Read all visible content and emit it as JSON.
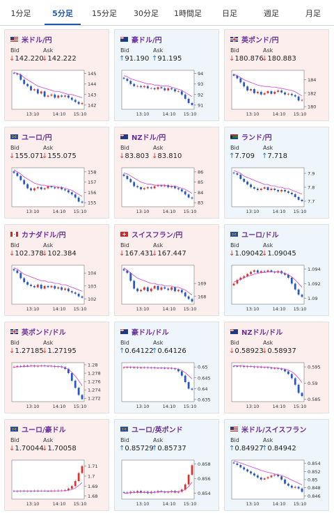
{
  "tabs": [
    {
      "label": "1分足",
      "active": false
    },
    {
      "label": "5分足",
      "active": true
    },
    {
      "label": "15分足",
      "active": false
    },
    {
      "label": "30分足",
      "active": false
    },
    {
      "label": "1時間足",
      "active": false
    },
    {
      "label": "日足",
      "active": false
    },
    {
      "label": "週足",
      "active": false
    },
    {
      "label": "月足",
      "active": false
    }
  ],
  "labels": {
    "bid": "Bid",
    "ask": "Ask"
  },
  "colors": {
    "down": "#d8342b",
    "up": "#1f6fbf",
    "name": "#6a2f99",
    "ma": "#d23fd0",
    "candle_up": "#d8342b",
    "candle_down": "#2457c5"
  },
  "cards": [
    {
      "name": "米ドル/円",
      "flag": "us-flag-icon",
      "bg": "red",
      "bid": "142.220",
      "ask": "142.222",
      "bid_dir": "down",
      "ask_dir": "down",
      "chart_data": {
        "type": "line",
        "x_labels": [
          "13:10",
          "14:10",
          "15:10"
        ],
        "y_ticks": [
          142,
          143,
          144,
          145
        ],
        "ylim": [
          141.6,
          145.3
        ],
        "price": [
          145.0,
          144.9,
          144.4,
          144.0,
          143.8,
          143.4,
          143.5,
          143.1,
          143.3,
          142.8,
          142.9,
          143.0,
          142.7,
          142.9,
          142.8,
          142.9,
          142.7,
          142.5,
          142.3,
          142.1,
          142.2
        ],
        "ma": [
          145.1,
          145.0,
          144.9,
          144.6,
          144.4,
          144.2,
          144.0,
          143.8,
          143.7,
          143.6,
          143.5,
          143.4,
          143.3,
          143.3,
          143.2,
          143.1,
          143.0,
          143.0,
          142.9,
          142.8,
          142.7
        ]
      }
    },
    {
      "name": "豪ドル/円",
      "flag": "au-flag-icon",
      "bg": "blue",
      "bid": "91.190",
      "ask": "91.195",
      "bid_dir": "up",
      "ask_dir": "up",
      "chart_data": {
        "type": "line",
        "x_labels": [
          "13:10",
          "14:10",
          "15:10"
        ],
        "y_ticks": [
          91,
          92,
          93,
          94
        ],
        "ylim": [
          90.6,
          94.3
        ],
        "price": [
          93.5,
          93.3,
          93.0,
          92.8,
          92.8,
          92.7,
          92.8,
          92.6,
          92.6,
          92.5,
          92.7,
          92.6,
          92.4,
          92.6,
          92.5,
          92.3,
          92.3,
          92.0,
          91.6,
          91.2,
          91.0
        ],
        "ma": [
          93.8,
          93.7,
          93.5,
          93.4,
          93.3,
          93.2,
          93.1,
          93.0,
          93.0,
          92.9,
          92.9,
          92.8,
          92.8,
          92.8,
          92.7,
          92.6,
          92.5,
          92.4,
          92.2,
          92.0,
          91.8
        ]
      }
    },
    {
      "name": "英ポンド/円",
      "flag": "uk-flag-icon",
      "bg": "red",
      "bid": "180.876",
      "ask": "180.883",
      "bid_dir": "down",
      "ask_dir": "down",
      "chart_data": {
        "type": "line",
        "x_labels": [
          "13:10",
          "14:10",
          "15:10"
        ],
        "y_ticks": [
          180,
          182,
          184
        ],
        "ylim": [
          179.6,
          185.4
        ],
        "price": [
          184.6,
          184.2,
          183.6,
          183.0,
          182.4,
          182.6,
          182.0,
          182.2,
          181.8,
          182.0,
          182.3,
          181.9,
          182.2,
          182.4,
          182.1,
          181.8,
          181.9,
          181.7,
          181.5,
          180.9,
          181.0
        ],
        "ma": [
          184.8,
          184.6,
          184.3,
          184.0,
          183.8,
          183.6,
          183.4,
          183.2,
          183.1,
          183.0,
          183.0,
          182.9,
          182.9,
          182.8,
          182.7,
          182.6,
          182.5,
          182.4,
          182.2,
          181.9,
          181.6
        ]
      }
    },
    {
      "name": "ユーロ/円",
      "flag": "eu-flag-icon",
      "bg": "red",
      "bid": "155.071",
      "ask": "155.075",
      "bid_dir": "down",
      "ask_dir": "down",
      "chart_data": {
        "type": "line",
        "x_labels": [
          "13:10",
          "14:10",
          "15:10"
        ],
        "y_ticks": [
          155,
          156,
          157,
          158
        ],
        "ylim": [
          154.6,
          158.4
        ],
        "price": [
          157.9,
          157.6,
          157.2,
          156.8,
          156.4,
          156.2,
          156.4,
          156.5,
          156.3,
          156.4,
          156.6,
          156.5,
          156.4,
          156.5,
          156.3,
          156.2,
          156.0,
          155.8,
          155.5,
          155.1,
          155.0
        ],
        "ma": [
          158.2,
          158.0,
          157.8,
          157.5,
          157.3,
          157.1,
          156.9,
          156.8,
          156.7,
          156.7,
          156.6,
          156.6,
          156.6,
          156.5,
          156.5,
          156.4,
          156.3,
          156.2,
          156.0,
          155.8,
          155.6
        ]
      }
    },
    {
      "name": "NZドル/円",
      "flag": "nz-flag-icon",
      "bg": "red",
      "bid": "83.803",
      "ask": "83.810",
      "bid_dir": "down",
      "ask_dir": "down",
      "chart_data": {
        "type": "line",
        "x_labels": [
          "13:10",
          "14:10",
          "15:10"
        ],
        "y_ticks": [
          83,
          84,
          85,
          86
        ],
        "ylim": [
          82.6,
          86.4
        ],
        "price": [
          85.6,
          85.3,
          85.0,
          84.6,
          84.5,
          84.3,
          84.4,
          84.5,
          84.4,
          84.6,
          84.7,
          84.6,
          84.7,
          84.5,
          84.6,
          84.4,
          84.3,
          84.1,
          83.8,
          83.5,
          83.4
        ],
        "ma": [
          85.9,
          85.8,
          85.6,
          85.4,
          85.2,
          85.0,
          84.9,
          84.8,
          84.8,
          84.7,
          84.7,
          84.7,
          84.7,
          84.6,
          84.6,
          84.6,
          84.5,
          84.4,
          84.3,
          84.1,
          83.9
        ]
      }
    },
    {
      "name": "ランド/円",
      "flag": "za-flag-icon",
      "bg": "blue",
      "bid": "7.709",
      "ask": "7.718",
      "bid_dir": "up",
      "ask_dir": "up",
      "chart_data": {
        "type": "line",
        "x_labels": [
          "13:10",
          "14:10",
          "15:10"
        ],
        "y_ticks": [
          7.7,
          7.8,
          7.9
        ],
        "ylim": [
          7.66,
          7.94
        ],
        "price": [
          7.9,
          7.89,
          7.86,
          7.84,
          7.82,
          7.8,
          7.79,
          7.78,
          7.79,
          7.8,
          7.78,
          7.79,
          7.78,
          7.77,
          7.78,
          7.77,
          7.76,
          7.75,
          7.73,
          7.71,
          7.7
        ],
        "ma": [
          7.92,
          7.91,
          7.9,
          7.88,
          7.87,
          7.86,
          7.85,
          7.84,
          7.83,
          7.82,
          7.82,
          7.81,
          7.81,
          7.8,
          7.8,
          7.79,
          7.79,
          7.78,
          7.77,
          7.76,
          7.75
        ]
      }
    },
    {
      "name": "カナダドル/円",
      "flag": "ca-flag-icon",
      "bg": "red",
      "bid": "102.378",
      "ask": "102.384",
      "bid_dir": "down",
      "ask_dir": "down",
      "chart_data": {
        "type": "line",
        "x_labels": [
          "13:10",
          "14:10",
          "15:10"
        ],
        "y_ticks": [
          102,
          103,
          104
        ],
        "ylim": [
          101.6,
          104.6
        ],
        "price": [
          104.2,
          104.0,
          103.6,
          103.3,
          103.1,
          103.0,
          102.9,
          103.1,
          102.8,
          103.0,
          102.9,
          103.0,
          102.8,
          102.9,
          102.7,
          102.8,
          102.6,
          102.5,
          102.4,
          102.2,
          102.1
        ],
        "ma": [
          104.4,
          104.3,
          104.1,
          103.9,
          103.8,
          103.7,
          103.6,
          103.5,
          103.4,
          103.4,
          103.3,
          103.3,
          103.2,
          103.2,
          103.1,
          103.1,
          103.0,
          102.9,
          102.8,
          102.7,
          102.6
        ]
      }
    },
    {
      "name": "スイスフラン/円",
      "flag": "ch-flag-icon",
      "bg": "red",
      "bid": "167.431",
      "ask": "167.447",
      "bid_dir": "down",
      "ask_dir": "down",
      "chart_data": {
        "type": "line",
        "x_labels": [
          "13:10",
          "14:10",
          "15:10"
        ],
        "y_ticks": [
          168,
          169
        ],
        "ylim": [
          167.4,
          170.4
        ],
        "price": [
          170.0,
          169.8,
          169.2,
          168.6,
          168.4,
          168.5,
          168.7,
          168.4,
          168.6,
          168.8,
          168.5,
          168.7,
          168.6,
          168.5,
          168.7,
          168.4,
          168.5,
          168.3,
          168.0,
          167.8,
          167.6
        ],
        "ma": [
          170.2,
          170.0,
          169.8,
          169.6,
          169.4,
          169.3,
          169.2,
          169.1,
          169.0,
          169.0,
          168.9,
          168.9,
          168.8,
          168.8,
          168.8,
          168.7,
          168.7,
          168.6,
          168.5,
          168.3,
          168.1
        ]
      }
    },
    {
      "name": "ユーロ/ドル",
      "flag": "eu-us-flag-icon",
      "bg": "blue",
      "bid": "1.09042",
      "ask": "1.09045",
      "bid_dir": "down",
      "ask_dir": "down",
      "chart_data": {
        "type": "line",
        "x_labels": [
          "13:10",
          "14:10",
          "15:10"
        ],
        "y_ticks": [
          1.09,
          1.092,
          1.094
        ],
        "ylim": [
          1.0892,
          1.0945
        ],
        "price": [
          1.092,
          1.0925,
          1.0928,
          1.093,
          1.0933,
          1.0936,
          1.0938,
          1.0935,
          1.0937,
          1.0936,
          1.0938,
          1.0936,
          1.0935,
          1.0937,
          1.0934,
          1.0932,
          1.0928,
          1.092,
          1.0912,
          1.0905,
          1.0902
        ],
        "ma": [
          1.0922,
          1.0924,
          1.0926,
          1.0928,
          1.093,
          1.0931,
          1.0933,
          1.0934,
          1.0935,
          1.0935,
          1.0936,
          1.0936,
          1.0936,
          1.0936,
          1.0935,
          1.0934,
          1.0932,
          1.0929,
          1.0925,
          1.092,
          1.0915
        ]
      }
    },
    {
      "name": "英ポンド/ドル",
      "flag": "uk-us-flag-icon",
      "bg": "red",
      "bid": "1.27185",
      "ask": "1.27195",
      "bid_dir": "down",
      "ask_dir": "down",
      "chart_data": {
        "type": "line",
        "x_labels": [
          "13:10",
          "14:10",
          "15:10"
        ],
        "y_ticks": [
          1.272,
          1.274,
          1.276,
          1.278,
          1.28
        ],
        "ylim": [
          1.2712,
          1.2805
        ],
        "price": [
          1.2795,
          1.2797,
          1.2796,
          1.2798,
          1.2797,
          1.2798,
          1.2796,
          1.2797,
          1.2798,
          1.2797,
          1.2796,
          1.2797,
          1.2795,
          1.2796,
          1.2794,
          1.279,
          1.278,
          1.2762,
          1.2745,
          1.2728,
          1.2718
        ],
        "ma": [
          1.2794,
          1.2795,
          1.2795,
          1.2796,
          1.2796,
          1.2797,
          1.2797,
          1.2797,
          1.2797,
          1.2797,
          1.2797,
          1.2797,
          1.2796,
          1.2796,
          1.2795,
          1.2793,
          1.2789,
          1.2782,
          1.2773,
          1.2762,
          1.275
        ]
      }
    },
    {
      "name": "豪ドル/ドル",
      "flag": "au-us-flag-icon",
      "bg": "blue",
      "bid": "0.64122",
      "ask": "0.64126",
      "bid_dir": "up",
      "ask_dir": "up",
      "chart_data": {
        "type": "line",
        "x_labels": [
          "13:10",
          "14:10",
          "15:10"
        ],
        "y_ticks": [
          0.635,
          0.64,
          0.645,
          0.65
        ],
        "ylim": [
          0.634,
          0.652
        ],
        "price": [
          0.6498,
          0.6499,
          0.6497,
          0.6498,
          0.6496,
          0.6497,
          0.6498,
          0.6496,
          0.6497,
          0.6495,
          0.6496,
          0.6495,
          0.6494,
          0.6495,
          0.6493,
          0.649,
          0.648,
          0.646,
          0.643,
          0.64,
          0.6395
        ],
        "ma": [
          0.65,
          0.65,
          0.6499,
          0.6499,
          0.6498,
          0.6498,
          0.6498,
          0.6497,
          0.6497,
          0.6497,
          0.6496,
          0.6496,
          0.6496,
          0.6495,
          0.6495,
          0.6493,
          0.649,
          0.6484,
          0.6474,
          0.646,
          0.6445
        ]
      }
    },
    {
      "name": "NZドル/ドル",
      "flag": "nz-us-flag-icon",
      "bg": "red",
      "bid": "0.58923",
      "ask": "0.58937",
      "bid_dir": "down",
      "ask_dir": "down",
      "chart_data": {
        "type": "line",
        "x_labels": [
          "13:10",
          "14:10",
          "15:10"
        ],
        "y_ticks": [
          0.585,
          0.59,
          0.595
        ],
        "ylim": [
          0.5843,
          0.5963
        ],
        "price": [
          0.5952,
          0.5951,
          0.5953,
          0.595,
          0.5952,
          0.5951,
          0.5949,
          0.595,
          0.5948,
          0.5949,
          0.5947,
          0.5945,
          0.5946,
          0.5944,
          0.5942,
          0.5936,
          0.5928,
          0.5915,
          0.5895,
          0.587,
          0.586
        ],
        "ma": [
          0.5954,
          0.5953,
          0.5953,
          0.5952,
          0.5952,
          0.5951,
          0.5951,
          0.595,
          0.595,
          0.5949,
          0.5949,
          0.5948,
          0.5947,
          0.5946,
          0.5945,
          0.5943,
          0.594,
          0.5935,
          0.5927,
          0.5915,
          0.5902
        ]
      }
    },
    {
      "name": "ユーロ/豪ドル",
      "flag": "eu-au-flag-icon",
      "bg": "red",
      "bid": "1.70044",
      "ask": "1.70058",
      "bid_dir": "down",
      "ask_dir": "down",
      "chart_data": {
        "type": "line",
        "x_labels": [
          "13:10",
          "14:10",
          "15:10"
        ],
        "y_ticks": [
          1.68,
          1.69,
          1.7,
          1.71
        ],
        "ylim": [
          1.677,
          1.716
        ],
        "price": [
          1.685,
          1.6848,
          1.6852,
          1.6849,
          1.6851,
          1.685,
          1.6852,
          1.685,
          1.6853,
          1.6851,
          1.685,
          1.6852,
          1.6854,
          1.6853,
          1.6856,
          1.686,
          1.6875,
          1.69,
          1.695,
          1.703,
          1.71
        ],
        "ma": [
          1.6848,
          1.6849,
          1.6849,
          1.685,
          1.685,
          1.685,
          1.6851,
          1.6851,
          1.6851,
          1.6851,
          1.6851,
          1.6852,
          1.6852,
          1.6852,
          1.6853,
          1.6854,
          1.6858,
          1.6865,
          1.688,
          1.6905,
          1.6935
        ]
      }
    },
    {
      "name": "ユーロ/英ポンド",
      "flag": "eu-uk-flag-icon",
      "bg": "blue",
      "bid": "0.85729",
      "ask": "0.85737",
      "bid_dir": "up",
      "ask_dir": "up",
      "chart_data": {
        "type": "line",
        "x_labels": [
          "13:10",
          "14:10",
          "15:10"
        ],
        "y_ticks": [
          0.854,
          0.856,
          0.858
        ],
        "ylim": [
          0.8532,
          0.8585
        ],
        "price": [
          0.8541,
          0.854,
          0.8542,
          0.8541,
          0.8543,
          0.8541,
          0.8542,
          0.854,
          0.8542,
          0.8541,
          0.8543,
          0.8542,
          0.8541,
          0.8542,
          0.8543,
          0.8541,
          0.8542,
          0.8545,
          0.8552,
          0.8565,
          0.8578
        ],
        "ma": [
          0.854,
          0.854,
          0.8541,
          0.8541,
          0.8541,
          0.8541,
          0.8541,
          0.8541,
          0.8541,
          0.8541,
          0.8542,
          0.8542,
          0.8542,
          0.8542,
          0.8542,
          0.8542,
          0.8542,
          0.8543,
          0.8545,
          0.8549,
          0.8555
        ]
      }
    },
    {
      "name": "米ドル/スイスフラン",
      "flag": "us-ch-flag-icon",
      "bg": "blue",
      "bid": "0.84927",
      "ask": "0.84942",
      "bid_dir": "up",
      "ask_dir": "up",
      "chart_data": {
        "type": "line",
        "x_labels": [
          "13:10",
          "14:10",
          "15:10"
        ],
        "y_ticks": [
          0.846,
          0.848,
          0.85,
          0.852,
          0.854
        ],
        "ylim": [
          0.8452,
          0.8548
        ],
        "price": [
          0.854,
          0.8536,
          0.853,
          0.8525,
          0.852,
          0.8515,
          0.851,
          0.8505,
          0.85,
          0.8503,
          0.8506,
          0.851,
          0.8512,
          0.8508,
          0.85,
          0.849,
          0.8485,
          0.848,
          0.8482,
          0.8478,
          0.847
        ],
        "ma": [
          0.8546,
          0.8544,
          0.8541,
          0.8538,
          0.8535,
          0.8532,
          0.8529,
          0.8526,
          0.8523,
          0.852,
          0.8518,
          0.8516,
          0.8514,
          0.8512,
          0.851,
          0.8507,
          0.8503,
          0.8499,
          0.8495,
          0.8491,
          0.8487
        ]
      }
    }
  ]
}
